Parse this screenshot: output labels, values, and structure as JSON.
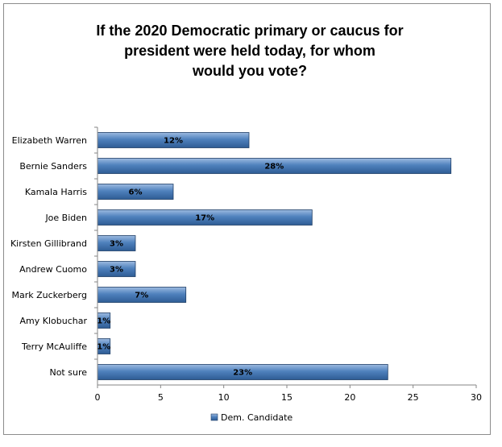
{
  "chart_data": {
    "type": "bar",
    "orientation": "horizontal",
    "title": "If the 2020 Democratic primary or caucus for\npresident were held today, for whom\nwould you vote?",
    "categories": [
      "Elizabeth Warren",
      "Bernie Sanders",
      "Kamala Harris",
      "Joe Biden",
      "Kirsten Gillibrand",
      "Andrew Cuomo",
      "Mark Zuckerberg",
      "Amy Klobuchar",
      "Terry McAuliffe",
      "Not sure"
    ],
    "series": [
      {
        "name": "Dem. Candidate",
        "values": [
          12,
          28,
          6,
          17,
          3,
          3,
          7,
          1,
          1,
          23
        ],
        "labels": [
          "12%",
          "28%",
          "6%",
          "17%",
          "3%",
          "3%",
          "7%",
          "1%",
          "1%",
          "23%"
        ]
      }
    ],
    "xlim": [
      0,
      30
    ],
    "xticks": [
      0,
      5,
      10,
      15,
      20,
      25,
      30
    ],
    "grid": false,
    "legend": "bottom",
    "colors": {
      "bar": "#4F81BD",
      "bar_light": "#9DBAE0",
      "bar_dark": "#2E5C94",
      "bar_edge": "#1F3E66"
    }
  }
}
